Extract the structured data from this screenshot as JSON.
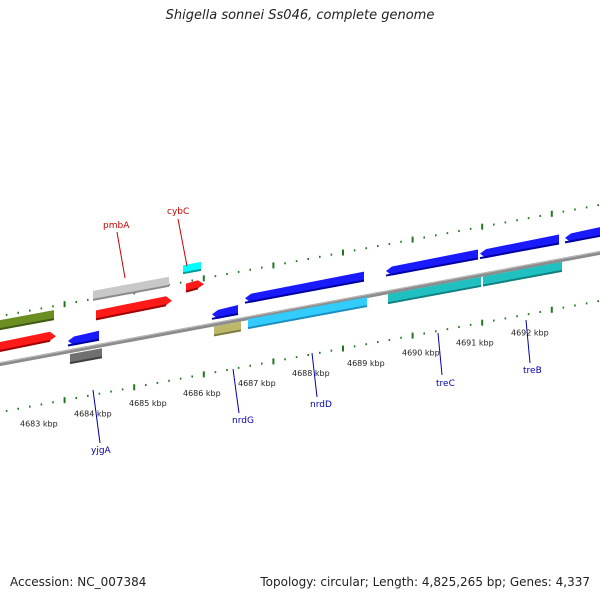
{
  "title": "Shigella sonnei Ss046, complete genome",
  "footer": {
    "accession": "Accession: NC_007384",
    "summary": "Topology: circular; Length: 4,825,265 bp; Genes: 4,337"
  },
  "colors": {
    "backbone": "#8c8c8c",
    "ticks": "#1f7a1f",
    "label_top": "#cc0000",
    "label_bottom": "#0000aa"
  },
  "scale_ticks": [
    {
      "label": "4683 kbp",
      "kb": 4683
    },
    {
      "label": "4684 kbp",
      "kb": 4684
    },
    {
      "label": "4685 kbp",
      "kb": 4685
    },
    {
      "label": "4686 kbp",
      "kb": 4686
    },
    {
      "label": "4687 kbp",
      "kb": 4687
    },
    {
      "label": "4688 kbp",
      "kb": 4688
    },
    {
      "label": "4689 kbp",
      "kb": 4689
    },
    {
      "label": "4690 kbp",
      "kb": 4690
    },
    {
      "label": "4691 kbp",
      "kb": 4691
    },
    {
      "label": "4692 kbp",
      "kb": 4692
    }
  ],
  "gene_labels": [
    {
      "name": "pmbA",
      "strand": "top"
    },
    {
      "name": "cybC",
      "strand": "top"
    },
    {
      "name": "yjgA",
      "strand": "bottom"
    },
    {
      "name": "nrdG",
      "strand": "bottom"
    },
    {
      "name": "nrdD",
      "strand": "bottom"
    },
    {
      "name": "treC",
      "strand": "bottom"
    },
    {
      "name": "treB",
      "strand": "bottom"
    }
  ]
}
